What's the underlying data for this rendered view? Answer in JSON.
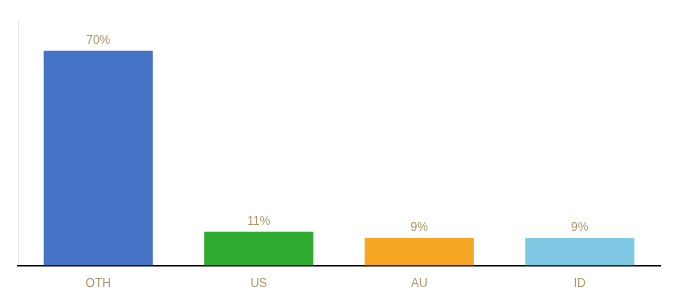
{
  "chart_data": {
    "type": "bar",
    "categories": [
      "OTH",
      "US",
      "AU",
      "ID"
    ],
    "values": [
      70,
      11,
      9,
      9
    ],
    "value_labels": [
      "70%",
      "11%",
      "9%",
      "9%"
    ],
    "colors": [
      "#4472c4",
      "#2eaa2e",
      "#f5a623",
      "#7ec8e3"
    ],
    "ylim": [
      0,
      80
    ],
    "grid": false,
    "data_labels": true,
    "tick_labels": "x"
  }
}
